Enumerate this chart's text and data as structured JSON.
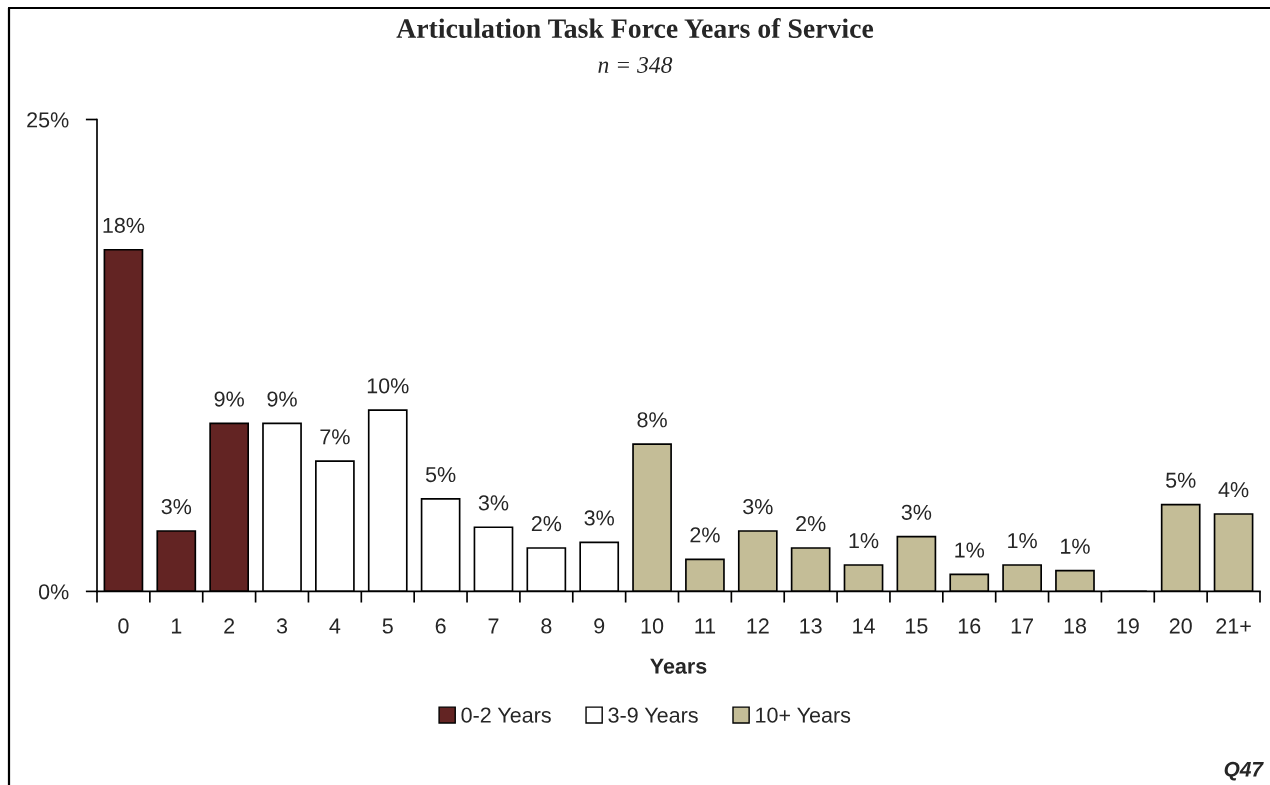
{
  "chart_data": {
    "type": "bar",
    "title": "Articulation Task Force Years of Service",
    "subtitle": "n = 348",
    "xlabel": "Years",
    "categories": [
      "0",
      "1",
      "2",
      "3",
      "4",
      "5",
      "6",
      "7",
      "8",
      "9",
      "10",
      "11",
      "12",
      "13",
      "14",
      "15",
      "16",
      "17",
      "18",
      "19",
      "20",
      "21+"
    ],
    "stacked": true,
    "series": [
      {
        "name": "0-2 Years",
        "color": "#632423",
        "values": [
          18.1,
          3.2,
          8.9,
          null,
          null,
          null,
          null,
          null,
          null,
          null,
          null,
          null,
          null,
          null,
          null,
          null,
          null,
          null,
          null,
          null,
          null,
          null
        ],
        "value_labels": [
          "18%",
          "3%",
          "9%",
          null,
          null,
          null,
          null,
          null,
          null,
          null,
          null,
          null,
          null,
          null,
          null,
          null,
          null,
          null,
          null,
          null,
          null,
          null
        ]
      },
      {
        "name": "3-9 Years",
        "color": "#ffffff",
        "values": [
          null,
          null,
          null,
          8.9,
          6.9,
          9.6,
          4.9,
          3.4,
          2.3,
          2.6,
          null,
          null,
          null,
          null,
          null,
          null,
          null,
          null,
          null,
          null,
          null,
          null
        ],
        "value_labels": [
          null,
          null,
          null,
          "9%",
          "7%",
          "10%",
          "5%",
          "3%",
          "2%",
          "3%",
          null,
          null,
          null,
          null,
          null,
          null,
          null,
          null,
          null,
          null,
          null,
          null
        ]
      },
      {
        "name": "10+ Years",
        "color": "#c4bd97",
        "values": [
          null,
          null,
          null,
          null,
          null,
          null,
          null,
          null,
          null,
          null,
          7.8,
          1.7,
          3.2,
          2.3,
          1.4,
          2.9,
          0.9,
          1.4,
          1.1,
          0,
          4.6,
          4.1
        ],
        "value_labels": [
          null,
          null,
          null,
          null,
          null,
          null,
          null,
          null,
          null,
          null,
          "8%",
          "2%",
          "3%",
          "2%",
          "1%",
          "3%",
          "1%",
          "1%",
          "1%",
          null,
          "5%",
          "4%"
        ]
      }
    ],
    "ylim": [
      0,
      25
    ],
    "yticks": [
      {
        "value": 0,
        "label": "0%"
      },
      {
        "value": 25,
        "label": "25%"
      }
    ],
    "grid": false,
    "legend": "bottom",
    "annotations": [
      "Q47"
    ]
  }
}
